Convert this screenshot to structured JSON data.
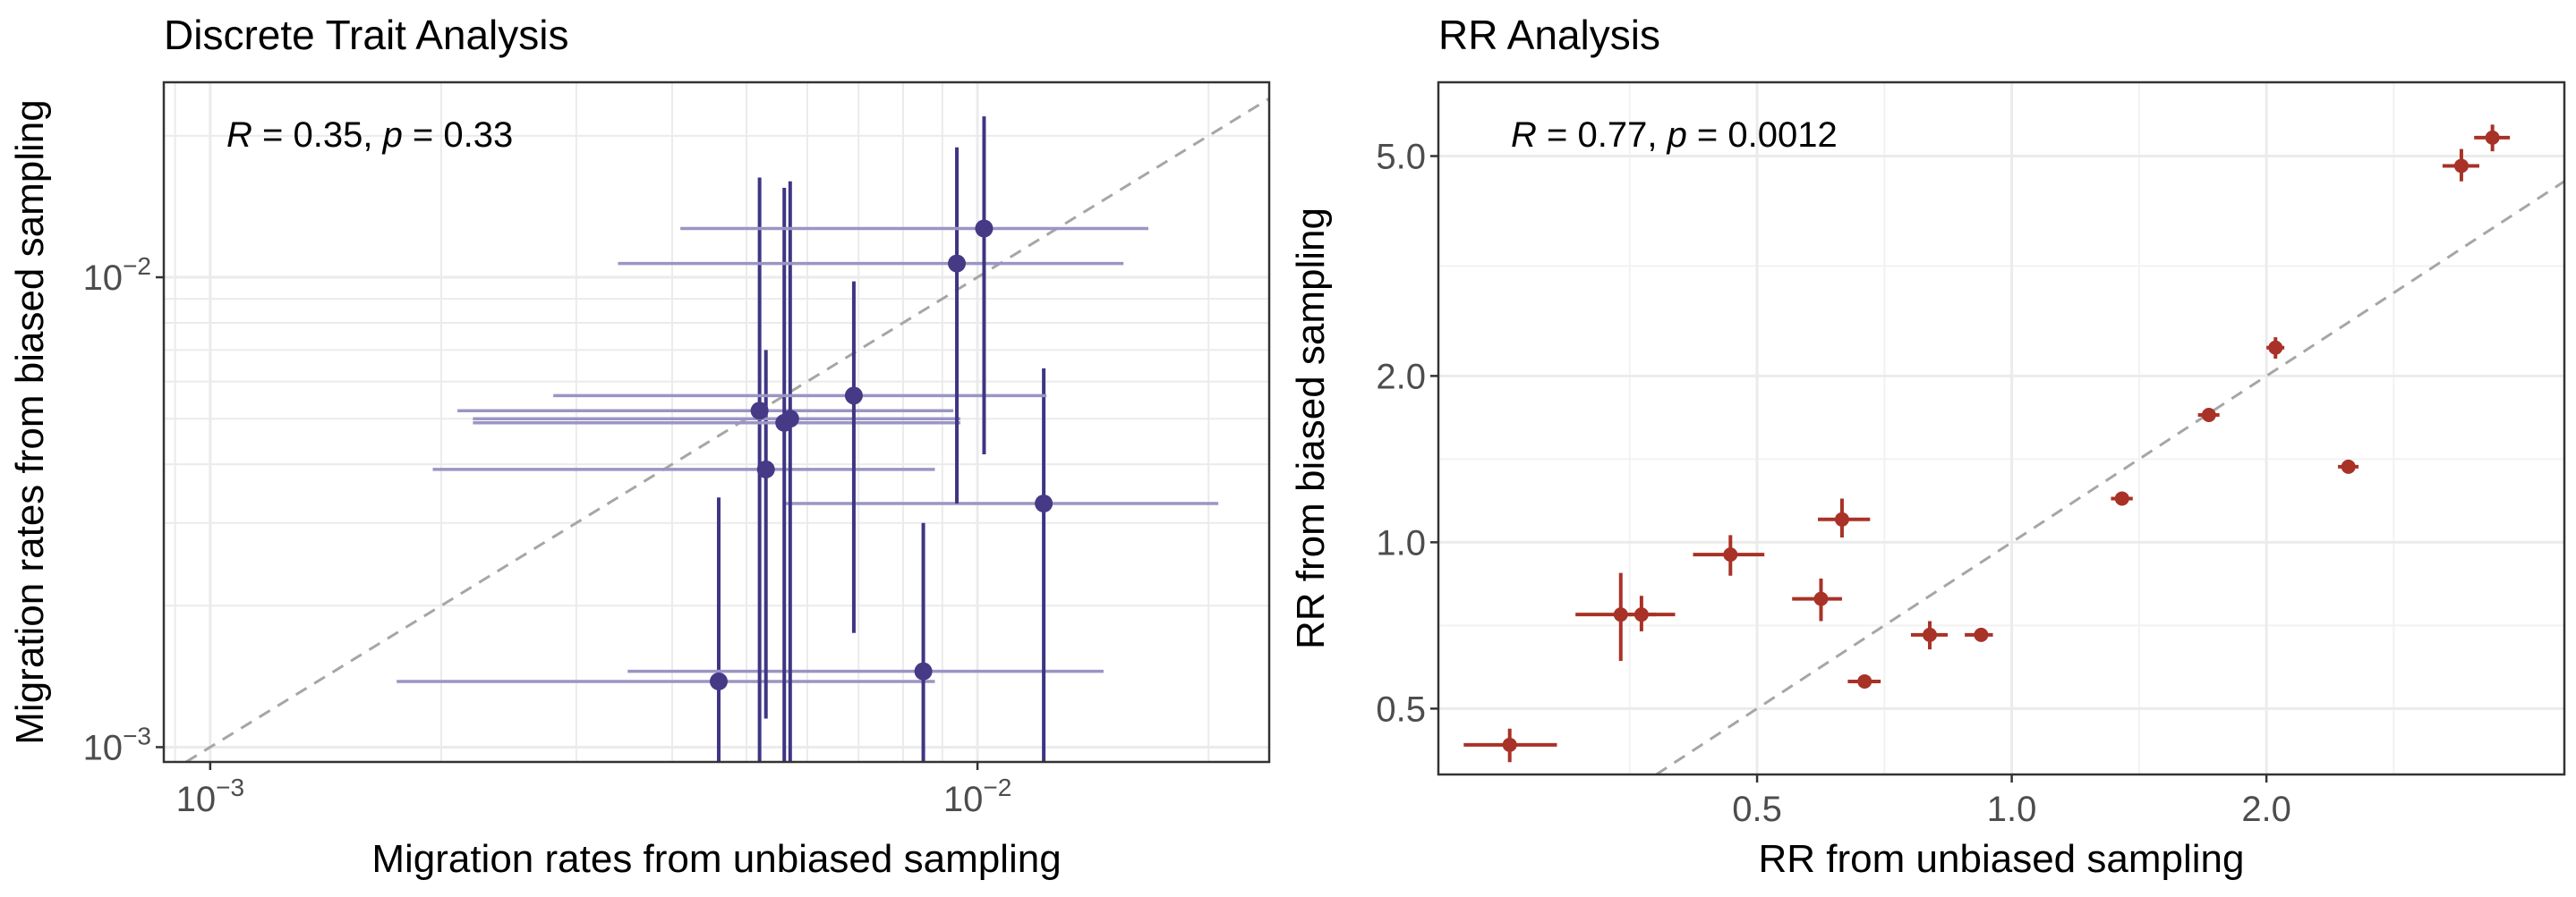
{
  "chart_data": [
    {
      "type": "scatter",
      "title": "Discrete Trait Analysis",
      "xlabel": "Migration rates from unbiased sampling",
      "ylabel": "Migration rates from biased sampling",
      "xscale": "log",
      "yscale": "log",
      "xlim": [
        0.00087,
        0.024
      ],
      "ylim": [
        0.00093,
        0.026
      ],
      "x_ticks": [
        {
          "value": 0.001,
          "base": "10",
          "exp": "−3"
        },
        {
          "value": 0.01,
          "base": "10",
          "exp": "−2"
        }
      ],
      "y_ticks": [
        {
          "value": 0.001,
          "base": "10",
          "exp": "−3"
        },
        {
          "value": 0.01,
          "base": "10",
          "exp": "−2"
        }
      ],
      "annotation": {
        "r": "0.35",
        "p": "0.33"
      },
      "reference_line": "identity (dashed)",
      "grid": true,
      "point_color": "#463a86",
      "hbar_color": "#9b95c4",
      "vbar_color": "#3e3583",
      "points": [
        {
          "x": 0.0046,
          "y": 0.00138,
          "xlo": 0.00175,
          "xhi": 0.0088,
          "ylo": 0.0009,
          "yhi": 0.0034
        },
        {
          "x": 0.0085,
          "y": 0.00145,
          "xlo": 0.0035,
          "xhi": 0.0146,
          "ylo": 0.0009,
          "yhi": 0.003
        },
        {
          "x": 0.0122,
          "y": 0.0033,
          "xlo": 0.0056,
          "xhi": 0.0206,
          "ylo": 0.0009,
          "yhi": 0.0064
        },
        {
          "x": 0.0053,
          "y": 0.0039,
          "xlo": 0.00195,
          "xhi": 0.0088,
          "ylo": 0.00115,
          "yhi": 0.007
        },
        {
          "x": 0.0052,
          "y": 0.0052,
          "xlo": 0.0021,
          "xhi": 0.0093,
          "ylo": 0.0009,
          "yhi": 0.0163
        },
        {
          "x": 0.0056,
          "y": 0.0049,
          "xlo": 0.0022,
          "xhi": 0.0095,
          "ylo": 0.0009,
          "yhi": 0.0155
        },
        {
          "x": 0.0057,
          "y": 0.005,
          "xlo": 0.0022,
          "xhi": 0.0095,
          "ylo": 0.0009,
          "yhi": 0.016
        },
        {
          "x": 0.0069,
          "y": 0.0056,
          "xlo": 0.0028,
          "xhi": 0.0123,
          "ylo": 0.00175,
          "yhi": 0.0098
        },
        {
          "x": 0.0094,
          "y": 0.0107,
          "xlo": 0.0034,
          "xhi": 0.0155,
          "ylo": 0.0033,
          "yhi": 0.0189
        },
        {
          "x": 0.0102,
          "y": 0.0127,
          "xlo": 0.0041,
          "xhi": 0.0167,
          "ylo": 0.0042,
          "yhi": 0.022
        }
      ]
    },
    {
      "type": "scatter",
      "title": "RR Analysis",
      "xlabel": "RR from unbiased sampling",
      "ylabel": "RR from biased sampling",
      "xscale": "log",
      "yscale": "log",
      "xlim": [
        0.21,
        4.5
      ],
      "ylim": [
        0.38,
        6.8
      ],
      "x_ticks": [
        {
          "value": 0.5,
          "label": "0.5"
        },
        {
          "value": 1.0,
          "label": "1.0"
        },
        {
          "value": 2.0,
          "label": "2.0"
        }
      ],
      "y_ticks": [
        {
          "value": 0.5,
          "label": "0.5"
        },
        {
          "value": 1.0,
          "label": "1.0"
        },
        {
          "value": 2.0,
          "label": "2.0"
        },
        {
          "value": 5.0,
          "label": "5.0"
        }
      ],
      "annotation": {
        "r": "0.77",
        "p": "0.0012"
      },
      "reference_line": "identity (dashed)",
      "grid": true,
      "point_color": "#a83227",
      "points": [
        {
          "x": 0.255,
          "y": 0.43,
          "xlo": 0.225,
          "xhi": 0.29,
          "ylo": 0.4,
          "yhi": 0.46
        },
        {
          "x": 0.345,
          "y": 0.74,
          "xlo": 0.305,
          "xhi": 0.38,
          "ylo": 0.61,
          "yhi": 0.88
        },
        {
          "x": 0.365,
          "y": 0.74,
          "xlo": 0.34,
          "xhi": 0.4,
          "ylo": 0.69,
          "yhi": 0.8
        },
        {
          "x": 0.465,
          "y": 0.95,
          "xlo": 0.42,
          "xhi": 0.51,
          "ylo": 0.87,
          "yhi": 1.03
        },
        {
          "x": 0.595,
          "y": 0.79,
          "xlo": 0.55,
          "xhi": 0.63,
          "ylo": 0.72,
          "yhi": 0.86
        },
        {
          "x": 0.63,
          "y": 1.1,
          "xlo": 0.59,
          "xhi": 0.68,
          "ylo": 1.02,
          "yhi": 1.2
        },
        {
          "x": 0.67,
          "y": 0.56,
          "xlo": 0.64,
          "xhi": 0.7,
          "ylo": 0.55,
          "yhi": 0.57
        },
        {
          "x": 0.8,
          "y": 0.68,
          "xlo": 0.76,
          "xhi": 0.84,
          "ylo": 0.64,
          "yhi": 0.72
        },
        {
          "x": 0.92,
          "y": 0.68,
          "xlo": 0.88,
          "xhi": 0.95,
          "ylo": 0.67,
          "yhi": 0.69
        },
        {
          "x": 1.35,
          "y": 1.2,
          "xlo": 1.31,
          "xhi": 1.39,
          "ylo": 1.17,
          "yhi": 1.23
        },
        {
          "x": 1.71,
          "y": 1.7,
          "xlo": 1.66,
          "xhi": 1.76,
          "ylo": 1.66,
          "yhi": 1.74
        },
        {
          "x": 2.05,
          "y": 2.25,
          "xlo": 2.0,
          "xhi": 2.1,
          "ylo": 2.15,
          "yhi": 2.35
        },
        {
          "x": 2.5,
          "y": 1.37,
          "xlo": 2.43,
          "xhi": 2.57,
          "ylo": 1.34,
          "yhi": 1.4
        },
        {
          "x": 3.4,
          "y": 4.8,
          "xlo": 3.23,
          "xhi": 3.57,
          "ylo": 4.5,
          "yhi": 5.15
        },
        {
          "x": 3.7,
          "y": 5.4,
          "xlo": 3.52,
          "xhi": 3.88,
          "ylo": 5.1,
          "yhi": 5.7
        }
      ]
    }
  ]
}
